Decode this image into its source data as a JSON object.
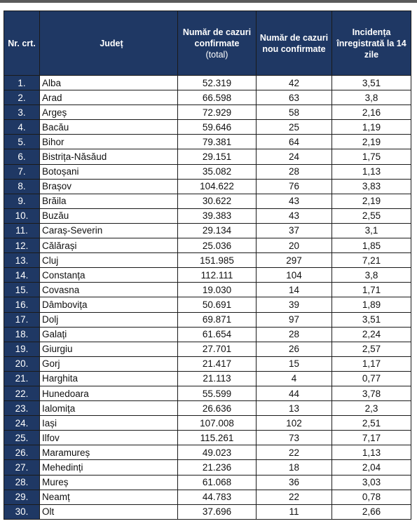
{
  "headers": {
    "nr": "Nr. crt.",
    "county": "Județ",
    "total_line1": "Număr de cazuri confirmate",
    "total_line2": "(total)",
    "new": "Număr de cazuri nou confirmate",
    "incidence": "Incidența înregistrată la 14 zile"
  },
  "rows": [
    {
      "nr": "1.",
      "county": "Alba",
      "total": "52.319",
      "new": "42",
      "incidence": "3,51"
    },
    {
      "nr": "2.",
      "county": "Arad",
      "total": "66.598",
      "new": "63",
      "incidence": "3,8"
    },
    {
      "nr": "3.",
      "county": "Argeș",
      "total": "72.929",
      "new": "58",
      "incidence": "2,16"
    },
    {
      "nr": "4.",
      "county": "Bacău",
      "total": "59.646",
      "new": "25",
      "incidence": "1,19"
    },
    {
      "nr": "5.",
      "county": "Bihor",
      "total": "79.381",
      "new": "64",
      "incidence": "2,19"
    },
    {
      "nr": "6.",
      "county": "Bistrița-Năsăud",
      "total": "29.151",
      "new": "24",
      "incidence": "1,75"
    },
    {
      "nr": "7.",
      "county": "Botoșani",
      "total": "35.082",
      "new": "28",
      "incidence": "1,13"
    },
    {
      "nr": "8.",
      "county": "Brașov",
      "total": "104.622",
      "new": "76",
      "incidence": "3,83"
    },
    {
      "nr": "9.",
      "county": "Brăila",
      "total": "30.622",
      "new": "43",
      "incidence": "2,19"
    },
    {
      "nr": "10.",
      "county": "Buzău",
      "total": "39.383",
      "new": "43",
      "incidence": "2,55"
    },
    {
      "nr": "11.",
      "county": "Caraș-Severin",
      "total": "29.134",
      "new": "37",
      "incidence": "3,1"
    },
    {
      "nr": "12.",
      "county": "Călărași",
      "total": "25.036",
      "new": "20",
      "incidence": "1,85"
    },
    {
      "nr": "13.",
      "county": "Cluj",
      "total": "151.985",
      "new": "297",
      "incidence": "7,21"
    },
    {
      "nr": "14.",
      "county": "Constanța",
      "total": "112.111",
      "new": "104",
      "incidence": "3,8"
    },
    {
      "nr": "15.",
      "county": "Covasna",
      "total": "19.030",
      "new": "14",
      "incidence": "1,71"
    },
    {
      "nr": "16.",
      "county": "Dâmbovița",
      "total": "50.691",
      "new": "39",
      "incidence": "1,89"
    },
    {
      "nr": "17.",
      "county": "Dolj",
      "total": "69.871",
      "new": "97",
      "incidence": "3,51"
    },
    {
      "nr": "18.",
      "county": "Galați",
      "total": "61.654",
      "new": "28",
      "incidence": "2,24"
    },
    {
      "nr": "19.",
      "county": "Giurgiu",
      "total": "27.701",
      "new": "26",
      "incidence": "2,57"
    },
    {
      "nr": "20.",
      "county": "Gorj",
      "total": "21.417",
      "new": "15",
      "incidence": "1,17"
    },
    {
      "nr": "21.",
      "county": "Harghita",
      "total": "21.113",
      "new": "4",
      "incidence": "0,77"
    },
    {
      "nr": "22.",
      "county": "Hunedoara",
      "total": "55.599",
      "new": "44",
      "incidence": "3,78"
    },
    {
      "nr": "23.",
      "county": "Ialomița",
      "total": "26.636",
      "new": "13",
      "incidence": "2,3"
    },
    {
      "nr": "24.",
      "county": "Iași",
      "total": "107.008",
      "new": "102",
      "incidence": "2,51"
    },
    {
      "nr": "25.",
      "county": "Ilfov",
      "total": "115.261",
      "new": "73",
      "incidence": "7,17"
    },
    {
      "nr": "26.",
      "county": "Maramureș",
      "total": "49.023",
      "new": "22",
      "incidence": "1,13"
    },
    {
      "nr": "27.",
      "county": "Mehedinți",
      "total": "21.236",
      "new": "18",
      "incidence": "2,04"
    },
    {
      "nr": "28.",
      "county": "Mureș",
      "total": "61.068",
      "new": "36",
      "incidence": "3,03"
    },
    {
      "nr": "29.",
      "county": "Neamț",
      "total": "44.783",
      "new": "22",
      "incidence": "0,78"
    },
    {
      "nr": "30.",
      "county": "Olt",
      "total": "37.696",
      "new": "11",
      "incidence": "2,66"
    }
  ],
  "colors": {
    "header_bg": "#1f3864",
    "header_text": "#ffffff",
    "border": "#1a1a1a"
  }
}
